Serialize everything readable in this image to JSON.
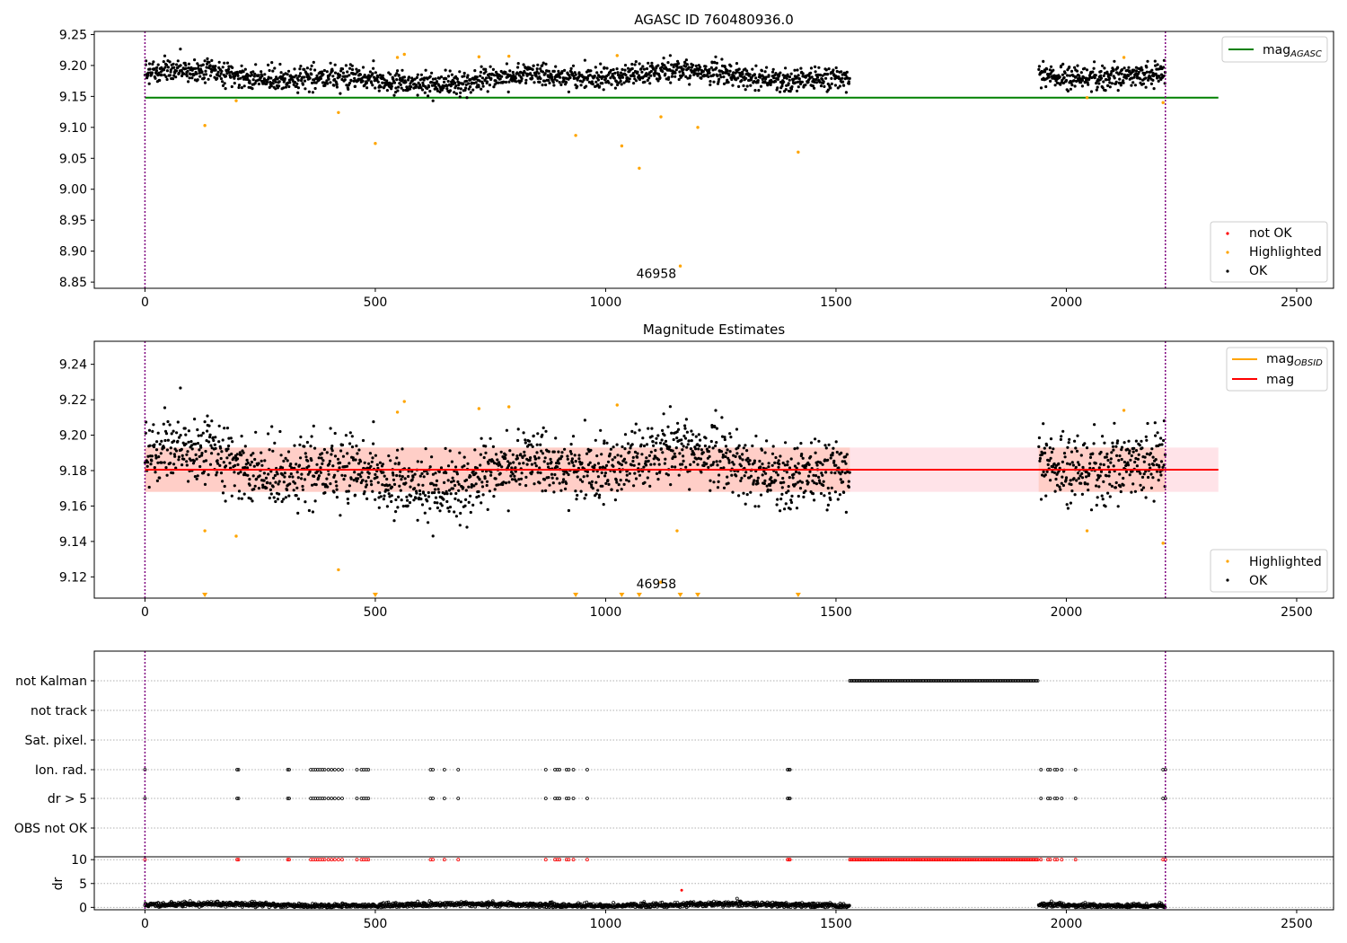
{
  "chart_data": [
    {
      "type": "scatter",
      "title": "AGASC ID 760480936.0",
      "xlim": [
        -110,
        2580
      ],
      "ylim": [
        8.84,
        9.255
      ],
      "x_ticks": [
        0,
        500,
        1000,
        1500,
        2000,
        2500
      ],
      "y_ticks": [
        8.85,
        8.9,
        8.95,
        9.0,
        9.05,
        9.1,
        9.15,
        9.2,
        9.25
      ],
      "y_tick_labels": [
        "8.85",
        "8.90",
        "8.95",
        "9.00",
        "9.05",
        "9.10",
        "9.15",
        "9.20",
        "9.25"
      ],
      "vlines": [
        0,
        2215
      ],
      "hline": {
        "y": 9.148,
        "x_range": [
          0,
          2330
        ],
        "color": "#008000"
      },
      "annotation": {
        "text": "46958",
        "x": 1110,
        "y": 8.857
      },
      "legend_top": [
        {
          "label": "mag",
          "sub": "AGASC",
          "color": "#008000"
        }
      ],
      "legend_bottom": [
        {
          "label": "not OK",
          "color": "#ff0000"
        },
        {
          "label": "Highlighted",
          "color": "#ffa500"
        },
        {
          "label": "OK",
          "color": "#000000"
        }
      ],
      "segments": [
        {
          "x0": 0,
          "x1": 1530,
          "base": 9.181,
          "noise": 0.009,
          "wave": 0.011
        },
        {
          "x0": 1940,
          "x1": 2215,
          "base": 9.179,
          "noise": 0.01,
          "wave": 0.01
        }
      ],
      "highlighted": [
        {
          "x": 130,
          "y": 9.103
        },
        {
          "x": 198,
          "y": 9.143
        },
        {
          "x": 420,
          "y": 9.124
        },
        {
          "x": 500,
          "y": 9.074
        },
        {
          "x": 548,
          "y": 9.213
        },
        {
          "x": 563,
          "y": 9.218
        },
        {
          "x": 725,
          "y": 9.214
        },
        {
          "x": 790,
          "y": 9.215
        },
        {
          "x": 935,
          "y": 9.087
        },
        {
          "x": 1025,
          "y": 9.216
        },
        {
          "x": 1035,
          "y": 9.07
        },
        {
          "x": 1073,
          "y": 9.034
        },
        {
          "x": 1120,
          "y": 9.117
        },
        {
          "x": 1162,
          "y": 8.876
        },
        {
          "x": 1200,
          "y": 9.1
        },
        {
          "x": 1418,
          "y": 9.06
        },
        {
          "x": 2045,
          "y": 9.148
        },
        {
          "x": 2125,
          "y": 9.213
        },
        {
          "x": 2210,
          "y": 9.14
        }
      ]
    },
    {
      "type": "scatter",
      "title": "Magnitude Estimates",
      "xlim": [
        -110,
        2580
      ],
      "ylim": [
        9.108,
        9.253
      ],
      "x_ticks": [
        0,
        500,
        1000,
        1500,
        2000,
        2500
      ],
      "y_ticks": [
        9.12,
        9.14,
        9.16,
        9.18,
        9.2,
        9.22,
        9.24
      ],
      "y_tick_labels": [
        "9.12",
        "9.14",
        "9.16",
        "9.18",
        "9.20",
        "9.22",
        "9.24"
      ],
      "vlines": [
        0,
        2215
      ],
      "band": {
        "y0": 9.168,
        "y1": 9.193,
        "x_range": [
          0,
          2330
        ]
      },
      "mean_line": {
        "y": 9.1805,
        "x_range": [
          0,
          2330
        ],
        "color": "#ff0000"
      },
      "annotation": {
        "text": "46958",
        "x": 1110,
        "y": 9.1137
      },
      "legend_top": [
        {
          "label": "mag",
          "sub": "OBSID",
          "color": "#ffa500"
        },
        {
          "label": "mag",
          "sub": "",
          "color": "#ff0000"
        }
      ],
      "legend_bottom": [
        {
          "label": "Highlighted",
          "color": "#ffa500"
        },
        {
          "label": "OK",
          "color": "#000000"
        }
      ],
      "segments": [
        {
          "x0": 0,
          "x1": 1530,
          "base": 9.181,
          "noise": 0.009,
          "wave": 0.011
        },
        {
          "x0": 1940,
          "x1": 2215,
          "base": 9.179,
          "noise": 0.01,
          "wave": 0.01
        }
      ],
      "highlighted": [
        {
          "x": 130,
          "y": 9.146
        },
        {
          "x": 198,
          "y": 9.143
        },
        {
          "x": 420,
          "y": 9.124
        },
        {
          "x": 548,
          "y": 9.213
        },
        {
          "x": 563,
          "y": 9.219
        },
        {
          "x": 725,
          "y": 9.215
        },
        {
          "x": 790,
          "y": 9.216
        },
        {
          "x": 1025,
          "y": 9.217
        },
        {
          "x": 1120,
          "y": 9.117
        },
        {
          "x": 1155,
          "y": 9.146
        },
        {
          "x": 2045,
          "y": 9.146
        },
        {
          "x": 2125,
          "y": 9.214
        },
        {
          "x": 2210,
          "y": 9.139
        }
      ],
      "off_scale_markers": [
        130,
        500,
        935,
        1035,
        1073,
        1162,
        1200,
        1418
      ]
    },
    {
      "type": "scatter",
      "title": "",
      "xlim": [
        -110,
        2580
      ],
      "flag_rows": [
        "not Kalman",
        "not track",
        "Sat. pixel.",
        "Ion. rad.",
        "dr > 5",
        "OBS not OK"
      ],
      "vlines": [
        0,
        2215
      ],
      "not_kalman_range": [
        1530,
        1940
      ],
      "ion_rad_x": [
        0,
        200,
        203,
        310,
        313,
        360,
        365,
        370,
        375,
        380,
        385,
        390,
        398,
        405,
        412,
        420,
        428,
        460,
        470,
        475,
        480,
        485,
        620,
        625,
        650,
        680,
        870,
        890,
        895,
        900,
        915,
        920,
        930,
        960,
        1395,
        1398,
        1400,
        1945,
        1960,
        1965,
        1975,
        1980,
        1990,
        2020,
        2210,
        2215
      ],
      "dr_panel": {
        "ylabel": "dr",
        "yticks": [
          0,
          5,
          10
        ],
        "y_tick_labels": [
          "0",
          "5",
          "10"
        ],
        "ylim": [
          -0.5,
          10.6
        ],
        "clipped_value": 10,
        "outlier": {
          "x": 1165,
          "y": 3.6
        }
      }
    }
  ]
}
